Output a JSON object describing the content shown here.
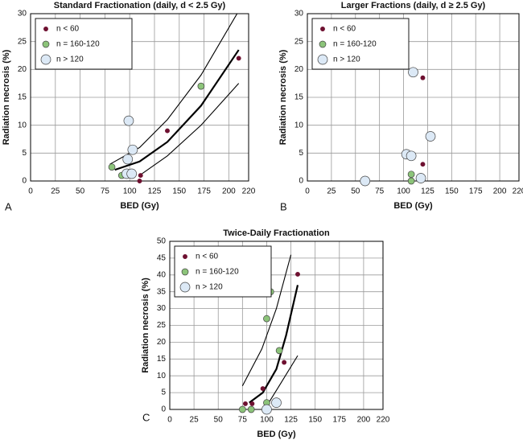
{
  "chart_data": [
    {
      "type": "scatter",
      "title": "Standard Fractionation (daily, d < 2.5 Gy)",
      "panel": "A",
      "xlabel": "BED (Gy)",
      "ylabel": "Radiation necrosis (%)",
      "xlim": [
        0,
        220
      ],
      "ylim": [
        0,
        30
      ],
      "xticks": [
        0,
        25,
        50,
        75,
        100,
        125,
        150,
        175,
        200,
        220
      ],
      "yticks": [
        0,
        5,
        10,
        15,
        20,
        25,
        30
      ],
      "grid": true,
      "legend": "upper left",
      "series": [
        {
          "name": "n < 60",
          "color": "#6e1030",
          "x": [
            110,
            111,
            138,
            210
          ],
          "values": [
            0,
            1,
            9,
            22
          ]
        },
        {
          "name": "n = 160-120",
          "color": "#8cc47a",
          "x": [
            82,
            92,
            172
          ],
          "values": [
            2.5,
            1,
            17
          ]
        },
        {
          "name": "n > 120",
          "color": "#dce9f6",
          "x": [
            99,
            98,
            103,
            97,
            102
          ],
          "values": [
            10.8,
            3.9,
            5.6,
            1.3,
            1.3
          ]
        },
        {
          "color": "#000000",
          "x": [
            85,
            110,
            138,
            172,
            210
          ],
          "values": [
            2,
            3.5,
            7,
            13.5,
            23.5
          ]
        },
        {
          "color": "#000000",
          "x": [
            80,
            110,
            138,
            172,
            210
          ],
          "values": [
            3,
            6,
            11,
            19,
            30.5
          ]
        },
        {
          "color": "#000000",
          "x": [
            110,
            138,
            172,
            210
          ],
          "values": [
            1,
            4.5,
            10,
            17.5
          ]
        }
      ]
    },
    {
      "type": "scatter",
      "title": "Larger Fractions (daily, d ≥ 2.5 Gy)",
      "panel": "B",
      "xlabel": "BED (Gy)",
      "ylabel": "Radiation necrosis (%)",
      "xlim": [
        0,
        220
      ],
      "ylim": [
        0,
        30
      ],
      "xticks": [
        0,
        25,
        50,
        75,
        100,
        125,
        150,
        175,
        200,
        220
      ],
      "yticks": [
        0,
        5,
        10,
        15,
        20,
        25,
        30
      ],
      "grid": true,
      "legend": "upper left",
      "series": [
        {
          "name": "n < 60",
          "color": "#6e1030",
          "x": [
            120,
            120
          ],
          "values": [
            18.5,
            3
          ]
        },
        {
          "name": "n = 160-120",
          "color": "#8cc47a",
          "x": [
            108,
            108
          ],
          "values": [
            1.2,
            0
          ]
        },
        {
          "name": "n > 120",
          "color": "#dce9f6",
          "x": [
            60,
            103,
            108,
            110,
            118,
            128
          ],
          "values": [
            0,
            4.8,
            4.5,
            19.5,
            0.5,
            8
          ]
        }
      ]
    },
    {
      "type": "scatter",
      "title": "Twice-Daily Fractionation",
      "panel": "C",
      "xlabel": "BED (Gy)",
      "ylabel": "Radiation necrosis (%)",
      "xlim": [
        0,
        220
      ],
      "ylim": [
        0,
        50
      ],
      "xticks": [
        0,
        25,
        50,
        75,
        100,
        125,
        150,
        175,
        200,
        220
      ],
      "yticks": [
        0,
        5,
        10,
        15,
        20,
        25,
        30,
        35,
        40,
        45,
        50
      ],
      "grid": true,
      "legend": "upper left",
      "series": [
        {
          "name": "n < 60",
          "color": "#6e1030",
          "x": [
            78,
            85,
            96,
            118,
            132
          ],
          "values": [
            1.7,
            1.7,
            6.2,
            14,
            40.2
          ]
        },
        {
          "name": "n = 160-120",
          "color": "#8cc47a",
          "x": [
            75,
            84,
            100,
            104,
            113,
            100
          ],
          "values": [
            0,
            0,
            27,
            35,
            17.5,
            2
          ]
        },
        {
          "name": "n > 120",
          "color": "#dce9f6",
          "x": [
            100,
            110
          ],
          "values": [
            0,
            2
          ]
        },
        {
          "color": "#000000",
          "x": [
            82,
            96,
            110,
            120,
            132
          ],
          "values": [
            2,
            5,
            12,
            22,
            37
          ]
        },
        {
          "color": "#000000",
          "x": [
            75,
            95,
            110,
            125
          ],
          "values": [
            7,
            18,
            30,
            46
          ]
        },
        {
          "color": "#000000",
          "x": [
            100,
            115,
            132
          ],
          "values": [
            1,
            8,
            16
          ]
        }
      ]
    }
  ]
}
